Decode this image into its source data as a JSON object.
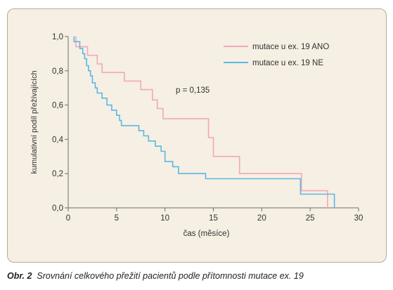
{
  "chart_data": {
    "type": "line",
    "xlabel": "čas (měsíce)",
    "ylabel": "kumulativní podíl přežívajících",
    "xlim": [
      0,
      30
    ],
    "ylim": [
      0,
      1.0
    ],
    "x_ticks": [
      "0",
      "5",
      "10",
      "15",
      "20",
      "25",
      "30"
    ],
    "y_ticks": [
      "0,0",
      "0,2",
      "0,4",
      "0,6",
      "0,8",
      "1,0"
    ],
    "grid": false,
    "legend_position": "top-right",
    "annotation": "p = 0,135",
    "series": [
      {
        "name": "mutace u ex. 19 ANO",
        "color": "#f2a7bd",
        "steps": [
          [
            0.8,
            0.94
          ],
          [
            2.0,
            0.89
          ],
          [
            3.0,
            0.84
          ],
          [
            3.5,
            0.79
          ],
          [
            5.8,
            0.74
          ],
          [
            7.5,
            0.69
          ],
          [
            8.7,
            0.63
          ],
          [
            9.2,
            0.58
          ],
          [
            9.8,
            0.52
          ],
          [
            14.5,
            0.41
          ],
          [
            15.0,
            0.3
          ],
          [
            17.7,
            0.2
          ],
          [
            24.1,
            0.1
          ],
          [
            26.8,
            0.0
          ]
        ],
        "end_x": 26.8
      },
      {
        "name": "mutace u ex. 19 NE",
        "color": "#5bb8e6",
        "steps": [
          [
            0.6,
            0.97
          ],
          [
            1.2,
            0.93
          ],
          [
            1.5,
            0.9
          ],
          [
            1.7,
            0.87
          ],
          [
            1.9,
            0.83
          ],
          [
            2.1,
            0.8
          ],
          [
            2.3,
            0.77
          ],
          [
            2.5,
            0.73
          ],
          [
            2.8,
            0.7
          ],
          [
            3.0,
            0.67
          ],
          [
            3.5,
            0.64
          ],
          [
            4.0,
            0.6
          ],
          [
            4.5,
            0.57
          ],
          [
            5.0,
            0.54
          ],
          [
            5.3,
            0.51
          ],
          [
            5.5,
            0.48
          ],
          [
            7.3,
            0.45
          ],
          [
            7.8,
            0.42
          ],
          [
            8.3,
            0.39
          ],
          [
            9.0,
            0.36
          ],
          [
            9.6,
            0.33
          ],
          [
            10.0,
            0.27
          ],
          [
            10.8,
            0.24
          ],
          [
            11.4,
            0.2
          ],
          [
            14.2,
            0.17
          ],
          [
            24.0,
            0.08
          ],
          [
            27.5,
            0.0
          ]
        ],
        "end_x": 27.5
      }
    ]
  },
  "caption": {
    "label": "Obr. 2",
    "text": "Srovnání celkového přežití pacientů podle přítomnosti mutace ex. 19"
  }
}
